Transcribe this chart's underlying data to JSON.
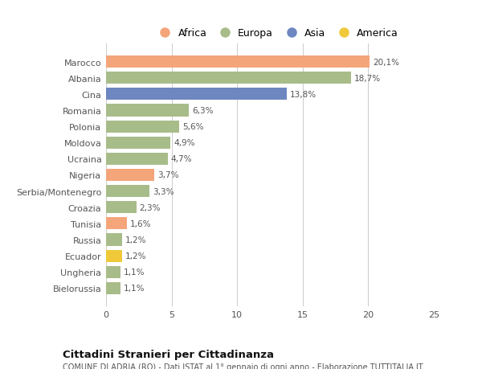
{
  "countries": [
    "Marocco",
    "Albania",
    "Cina",
    "Romania",
    "Polonia",
    "Moldova",
    "Ucraina",
    "Nigeria",
    "Serbia/Montenegro",
    "Croazia",
    "Tunisia",
    "Russia",
    "Ecuador",
    "Ungheria",
    "Bielorussia"
  ],
  "values": [
    20.1,
    18.7,
    13.8,
    6.3,
    5.6,
    4.9,
    4.7,
    3.7,
    3.3,
    2.3,
    1.6,
    1.2,
    1.2,
    1.1,
    1.1
  ],
  "labels": [
    "20,1%",
    "18,7%",
    "13,8%",
    "6,3%",
    "5,6%",
    "4,9%",
    "4,7%",
    "3,7%",
    "3,3%",
    "2,3%",
    "1,6%",
    "1,2%",
    "1,2%",
    "1,1%",
    "1,1%"
  ],
  "continents": [
    "Africa",
    "Europa",
    "Asia",
    "Europa",
    "Europa",
    "Europa",
    "Europa",
    "Africa",
    "Europa",
    "Europa",
    "Africa",
    "Europa",
    "America",
    "Europa",
    "Europa"
  ],
  "continent_colors": {
    "Africa": "#F4A57A",
    "Europa": "#A8BC8A",
    "Asia": "#6E87C0",
    "America": "#F0C93A"
  },
  "legend_order": [
    "Africa",
    "Europa",
    "Asia",
    "America"
  ],
  "legend_colors": [
    "#F4A57A",
    "#A8BC8A",
    "#6E87C0",
    "#F0C93A"
  ],
  "title": "Cittadini Stranieri per Cittadinanza",
  "subtitle": "COMUNE DI ADRIA (RO) - Dati ISTAT al 1° gennaio di ogni anno - Elaborazione TUTTITALIA.IT",
  "xlim": [
    0,
    25
  ],
  "xticks": [
    0,
    5,
    10,
    15,
    20,
    25
  ],
  "background_color": "#ffffff",
  "grid_color": "#cccccc",
  "bar_height": 0.75
}
